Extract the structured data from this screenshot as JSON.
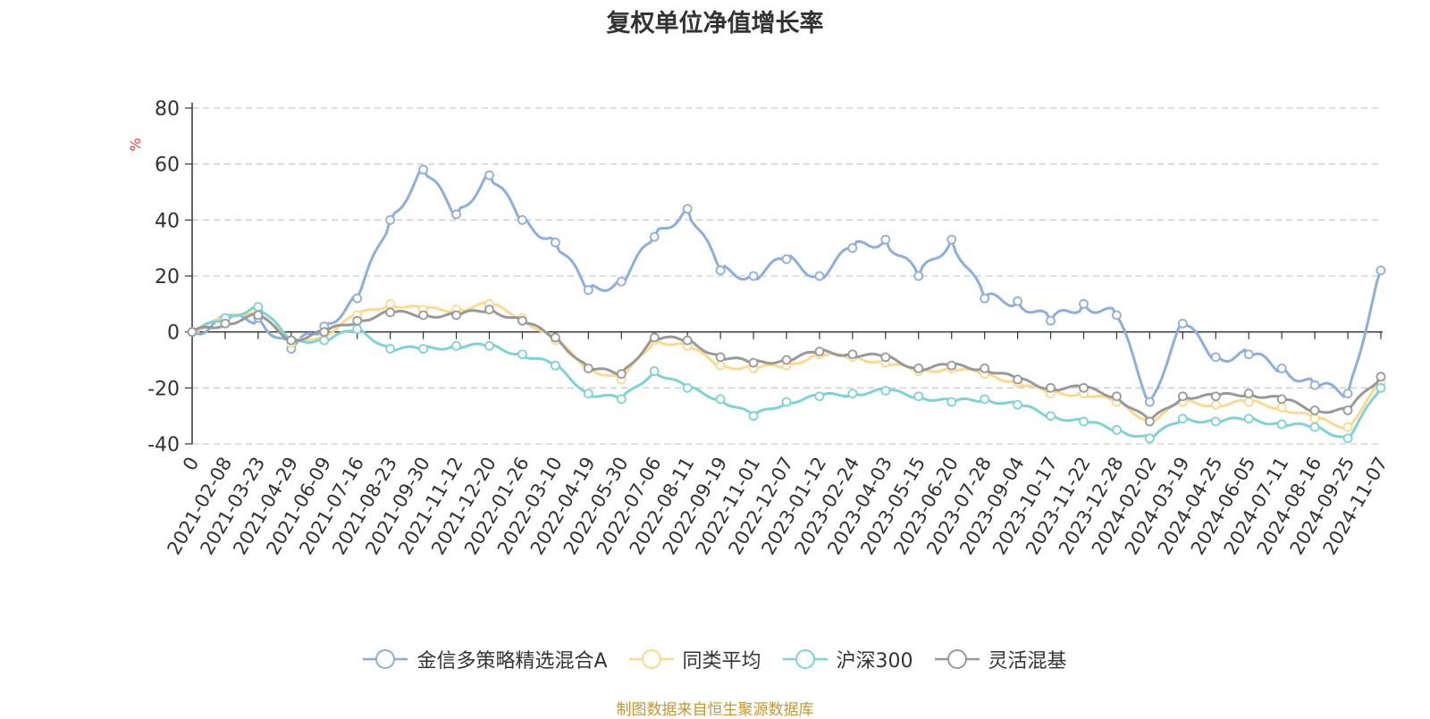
{
  "chart_data": {
    "type": "line",
    "title": "复权单位净值增长率",
    "ylabel": "%",
    "xlabel": "",
    "ylim": [
      -40,
      80
    ],
    "yticks": [
      -40,
      -20,
      0,
      20,
      40,
      60,
      80
    ],
    "grid": true,
    "legend_position": "bottom-center",
    "categories": [
      "0",
      "2021-02-08",
      "2021-03-23",
      "2021-04-29",
      "2021-06-09",
      "2021-07-16",
      "2021-08-23",
      "2021-09-30",
      "2021-11-12",
      "2021-12-20",
      "2022-01-26",
      "2022-03-10",
      "2022-04-19",
      "2022-05-30",
      "2022-07-06",
      "2022-08-11",
      "2022-09-19",
      "2022-11-01",
      "2022-12-07",
      "2023-01-12",
      "2023-02-24",
      "2023-04-03",
      "2023-05-15",
      "2023-06-20",
      "2023-07-28",
      "2023-09-04",
      "2023-10-17",
      "2023-11-22",
      "2023-12-28",
      "2024-02-02",
      "2024-03-19",
      "2024-04-25",
      "2024-06-05",
      "2024-07-11",
      "2024-08-16",
      "2024-09-25",
      "2024-11-07"
    ],
    "x": [
      0,
      1,
      2,
      3,
      4,
      5,
      6,
      7,
      8,
      9,
      10,
      11,
      12,
      13,
      14,
      15,
      16,
      17,
      18,
      19,
      20,
      21,
      22,
      23,
      24,
      25,
      26,
      27,
      28,
      29,
      30,
      31,
      32,
      33,
      34,
      35,
      36
    ],
    "series": [
      {
        "name": "金信多策略精选混合A",
        "color": "#8eaedb",
        "values": [
          0,
          4,
          5,
          -6,
          2,
          12,
          40,
          58,
          42,
          56,
          40,
          32,
          15,
          18,
          34,
          44,
          22,
          20,
          26,
          20,
          30,
          33,
          20,
          33,
          12,
          11,
          4,
          10,
          6,
          -25,
          3,
          -9,
          -8,
          -13,
          -19,
          -22,
          22
        ]
      },
      {
        "name": "同类平均",
        "color": "#fcd98d",
        "values": [
          0,
          5,
          8,
          -4,
          -1,
          6,
          10,
          8,
          8,
          10,
          5,
          -3,
          -13,
          -17,
          -3,
          -5,
          -12,
          -13,
          -12,
          -8,
          -9,
          -11,
          -14,
          -13,
          -15,
          -18,
          -22,
          -22,
          -25,
          -32,
          -25,
          -26,
          -25,
          -27,
          -31,
          -34,
          -18
        ]
      },
      {
        "name": "沪深300",
        "color": "#7ed3d6",
        "values": [
          0,
          5,
          9,
          -3,
          -3,
          1,
          -6,
          -6,
          -5,
          -5,
          -8,
          -12,
          -22,
          -24,
          -14,
          -20,
          -24,
          -30,
          -25,
          -23,
          -22,
          -21,
          -23,
          -25,
          -24,
          -26,
          -30,
          -32,
          -35,
          -38,
          -31,
          -32,
          -31,
          -33,
          -34,
          -38,
          -20
        ]
      },
      {
        "name": "灵活混基",
        "color": "#999999",
        "values": [
          0,
          3,
          6,
          -3,
          0,
          4,
          7,
          6,
          6,
          8,
          4,
          -2,
          -13,
          -15,
          -2,
          -3,
          -9,
          -11,
          -10,
          -7,
          -8,
          -9,
          -13,
          -12,
          -13,
          -17,
          -20,
          -20,
          -23,
          -32,
          -23,
          -23,
          -22,
          -24,
          -28,
          -28,
          -16
        ]
      }
    ]
  },
  "footer": {
    "source": "制图数据来自恒生聚源数据库"
  }
}
